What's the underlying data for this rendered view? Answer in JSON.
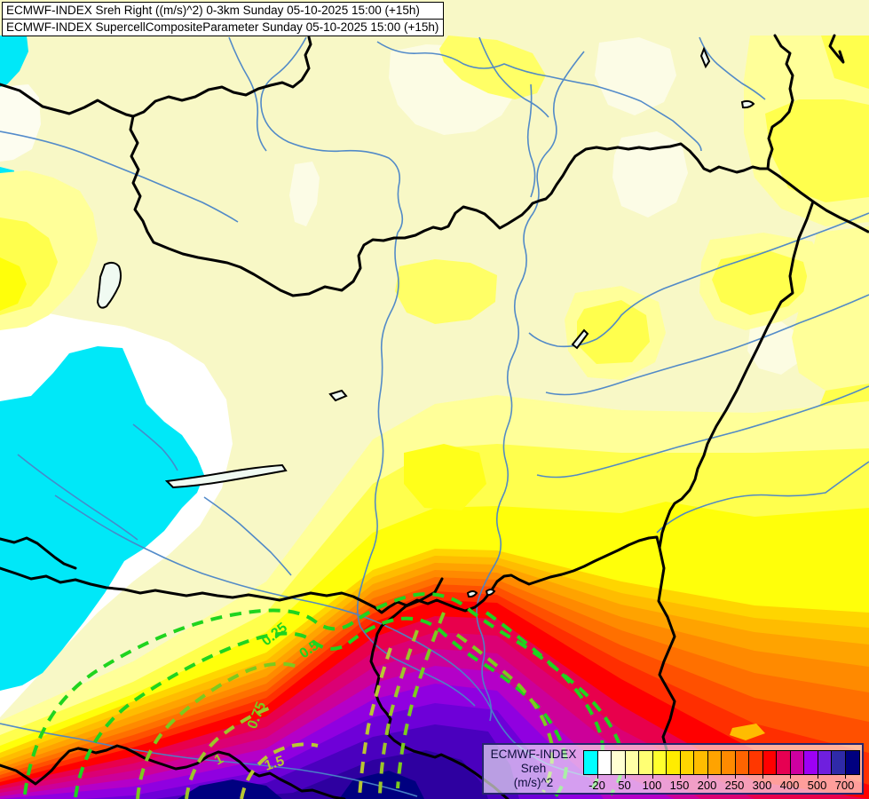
{
  "header": {
    "line1": "ECMWF-INDEX Sreh Right ((m/s)^2) 0-3km Sunday 05-10-2025 15:00 (+15h)",
    "line2": "ECMWF-INDEX SupercellCompositeParameter Sunday 05-10-2025 15:00 (+15h)"
  },
  "legend": {
    "title_line1": "ECMWF-INDEX",
    "title_line2": "Sreh",
    "title_line3": "(m/s)^2",
    "tick_labels": [
      "-20",
      "50",
      "100",
      "150",
      "200",
      "250",
      "300",
      "400",
      "500",
      "700"
    ],
    "swatches": [
      "#00FFFF",
      "#FFFFFF",
      "#FFFFD2",
      "#FFFFA6",
      "#FFFF73",
      "#FFFF2E",
      "#FFEC00",
      "#FFD500",
      "#FFBC00",
      "#FFA300",
      "#FF8A00",
      "#FF6400",
      "#FF3700",
      "#FF0000",
      "#E60052",
      "#CE00A0",
      "#9D00F5",
      "#6F1FDE",
      "#2F2AA8",
      "#000080"
    ]
  },
  "contours": {
    "labels": [
      "0.25",
      "0.5",
      "0.75",
      "1",
      "1.5"
    ]
  },
  "colors": {
    "scp_low": "#1FD41F",
    "scp_mid": "#7CCB1E",
    "scp_high": "#9DC52A",
    "scp_top": "#B9C832",
    "river": "#4A85C8",
    "border": "#000000",
    "legend_frame": "#26266E"
  }
}
